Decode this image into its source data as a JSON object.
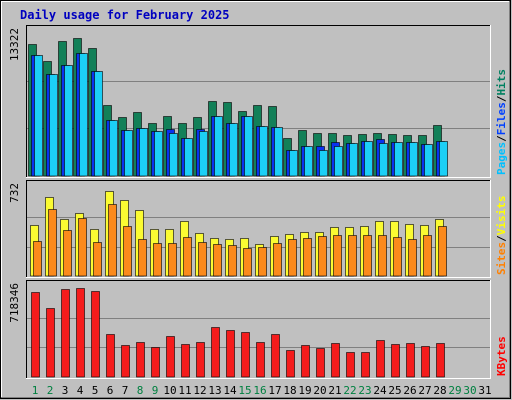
{
  "chart_data": [
    {
      "type": "bar",
      "title": "Daily usage for February 2025",
      "panel": "hits-files-pages",
      "ymax_label": "13322",
      "ylim": [
        0,
        13322
      ],
      "days": [
        1,
        2,
        3,
        4,
        5,
        6,
        7,
        8,
        9,
        10,
        11,
        12,
        13,
        14,
        15,
        16,
        17,
        18,
        19,
        20,
        21,
        22,
        23,
        24,
        25,
        26,
        27,
        28,
        29,
        30,
        31
      ],
      "day_colors": [
        "#008040",
        "#008040",
        "#000000",
        "#000000",
        "#000000",
        "#000000",
        "#000000",
        "#008040",
        "#008040",
        "#000000",
        "#000000",
        "#000000",
        "#000000",
        "#000000",
        "#008040",
        "#008040",
        "#000000",
        "#000000",
        "#000000",
        "#000000",
        "#000000",
        "#008040",
        "#008040",
        "#000000",
        "#000000",
        "#000000",
        "#000000",
        "#000000",
        "#008040",
        "#008040",
        "#000000"
      ],
      "legend": [
        {
          "label": "Pages",
          "color": "#00c0ff"
        },
        {
          "label": "/",
          "color": "#000000"
        },
        {
          "label": "Files",
          "color": "#0040ff"
        },
        {
          "label": "/",
          "color": "#000000"
        },
        {
          "label": "Hits",
          "color": "#008060"
        }
      ],
      "series": [
        {
          "key": "hits",
          "color": "#128058",
          "values": [
            12300,
            10670,
            12590,
            12870,
            11890,
            6650,
            5480,
            5990,
            4940,
            5630,
            4980,
            5510,
            7020,
            6910,
            6070,
            6650,
            6550,
            3570,
            4300,
            3970,
            4050,
            3780,
            3900,
            4000,
            3900,
            3800,
            3850,
            4780
          ]
        },
        {
          "key": "files",
          "color": "#0a32f0",
          "values": [
            11300,
            9480,
            10300,
            11500,
            9800,
            5260,
            4300,
            4450,
            4150,
            4420,
            3530,
            4420,
            5600,
            4930,
            5550,
            4670,
            4520,
            2430,
            2840,
            2770,
            3170,
            3090,
            3230,
            3470,
            3200,
            3130,
            2980,
            3280
          ]
        },
        {
          "key": "pages",
          "color": "#1ccff6",
          "values": [
            11300,
            9480,
            10300,
            11500,
            9800,
            5260,
            4300,
            4450,
            4150,
            4010,
            3530,
            4150,
            5600,
            4930,
            5550,
            4670,
            4520,
            2430,
            2840,
            2440,
            2840,
            3090,
            3230,
            3070,
            3200,
            3130,
            2980,
            3280
          ]
        }
      ]
    },
    {
      "type": "bar",
      "panel": "visits-sites",
      "ymax_label": "732",
      "ylim": [
        0,
        732
      ],
      "legend": [
        {
          "label": "Sites",
          "color": "#ff8000"
        },
        {
          "label": "/",
          "color": "#000000"
        },
        {
          "label": "Visits",
          "color": "#ffff00"
        }
      ],
      "series": [
        {
          "key": "visits",
          "color": "#fbfb32",
          "values": [
            425,
            655,
            470,
            520,
            393,
            710,
            630,
            545,
            395,
            393,
            460,
            358,
            320,
            310,
            318,
            270,
            330,
            352,
            370,
            368,
            407,
            407,
            412,
            460,
            460,
            433,
            423,
            475
          ]
        },
        {
          "key": "sites",
          "color": "#fb8a1c",
          "values": [
            288,
            560,
            380,
            483,
            283,
            603,
            420,
            310,
            275,
            275,
            325,
            285,
            268,
            260,
            235,
            245,
            272,
            310,
            318,
            330,
            345,
            345,
            340,
            345,
            325,
            305,
            345,
            420
          ]
        }
      ]
    },
    {
      "type": "bar",
      "panel": "kbytes",
      "ymax_label": "718346",
      "ylim": [
        0,
        718346
      ],
      "legend": [
        {
          "label": "KBytes",
          "color": "#ff0000"
        }
      ],
      "series": [
        {
          "key": "kbytes",
          "color": "#f51c1c",
          "values": [
            690000,
            560000,
            710000,
            718000,
            698000,
            345000,
            256000,
            286000,
            245000,
            328000,
            270000,
            280000,
            400000,
            381000,
            367000,
            283000,
            345000,
            220000,
            255000,
            238000,
            272000,
            200000,
            198000,
            300000,
            265000,
            273000,
            250000,
            273000
          ]
        }
      ]
    }
  ]
}
